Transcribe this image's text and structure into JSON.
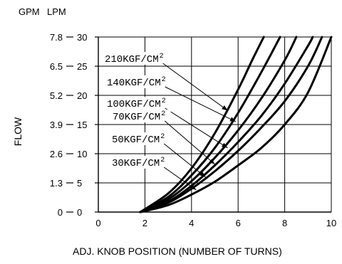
{
  "chart_data": {
    "type": "line",
    "title": "",
    "xlabel": "ADJ. KNOB POSITION (NUMBER OF TURNS)",
    "ylabel": "FLOW",
    "y_units": {
      "primary": "GPM",
      "secondary": "LPM"
    },
    "xlim": [
      0,
      10
    ],
    "ylim": [
      0,
      30
    ],
    "x_ticks": [
      0,
      2,
      4,
      6,
      8,
      10
    ],
    "y_ticks_lpm": [
      0,
      5,
      10,
      15,
      20,
      25,
      30
    ],
    "y_ticks_gpm": [
      "0",
      "1.3",
      "2.6",
      "3.9",
      "5.2",
      "6.5",
      "7.8"
    ],
    "grid": true,
    "legend": "annotations",
    "series": [
      {
        "name": "210KGF/CM",
        "sup": "2",
        "x": [
          1.8,
          3,
          4,
          5,
          6,
          6.6,
          7.1
        ],
        "y": [
          0,
          3.2,
          7.5,
          13.5,
          21,
          26,
          30
        ]
      },
      {
        "name": "140KGF/CM",
        "sup": "2",
        "x": [
          1.8,
          3,
          4,
          5,
          6,
          7,
          7.8
        ],
        "y": [
          0,
          2.6,
          6.3,
          11,
          17,
          24,
          30
        ]
      },
      {
        "name": "100KGF/CM",
        "sup": "2",
        "x": [
          1.8,
          3,
          4,
          5,
          6,
          7,
          8,
          8.5
        ],
        "y": [
          0,
          2.2,
          5.3,
          9.3,
          14,
          19.5,
          26,
          30
        ]
      },
      {
        "name": "70KGF/CM",
        "sup": "2",
        "x": [
          1.8,
          3,
          4,
          5,
          6,
          7,
          8,
          9,
          9.2
        ],
        "y": [
          0,
          1.8,
          4.5,
          8,
          12,
          16.5,
          22,
          28.5,
          30
        ]
      },
      {
        "name": "50KGF/CM",
        "sup": "2",
        "x": [
          1.8,
          3,
          4,
          5,
          6,
          7,
          8,
          9,
          9.6
        ],
        "y": [
          0,
          1.6,
          4,
          7,
          10.5,
          14.5,
          19,
          25,
          30
        ]
      },
      {
        "name": "30KGF/CM",
        "sup": "2",
        "x": [
          1.8,
          3,
          4,
          5,
          6,
          7,
          8,
          9,
          10
        ],
        "y": [
          0,
          1.2,
          3,
          5.2,
          8,
          11,
          15,
          20.5,
          30
        ]
      }
    ],
    "annotations": [
      {
        "series": "210KGF/CM",
        "point": [
          5.55,
          17.4
        ]
      },
      {
        "series": "140KGF/CM",
        "point": [
          5.9,
          15.5
        ]
      },
      {
        "series": "100KGF/CM",
        "point": [
          5.55,
          11.0
        ]
      },
      {
        "series": "70KGF/CM",
        "point": [
          5.0,
          8.2
        ]
      },
      {
        "series": "50KGF/CM",
        "point": [
          4.6,
          6.0
        ]
      },
      {
        "series": "30KGF/CM",
        "point": [
          4.2,
          3.8
        ]
      }
    ]
  }
}
